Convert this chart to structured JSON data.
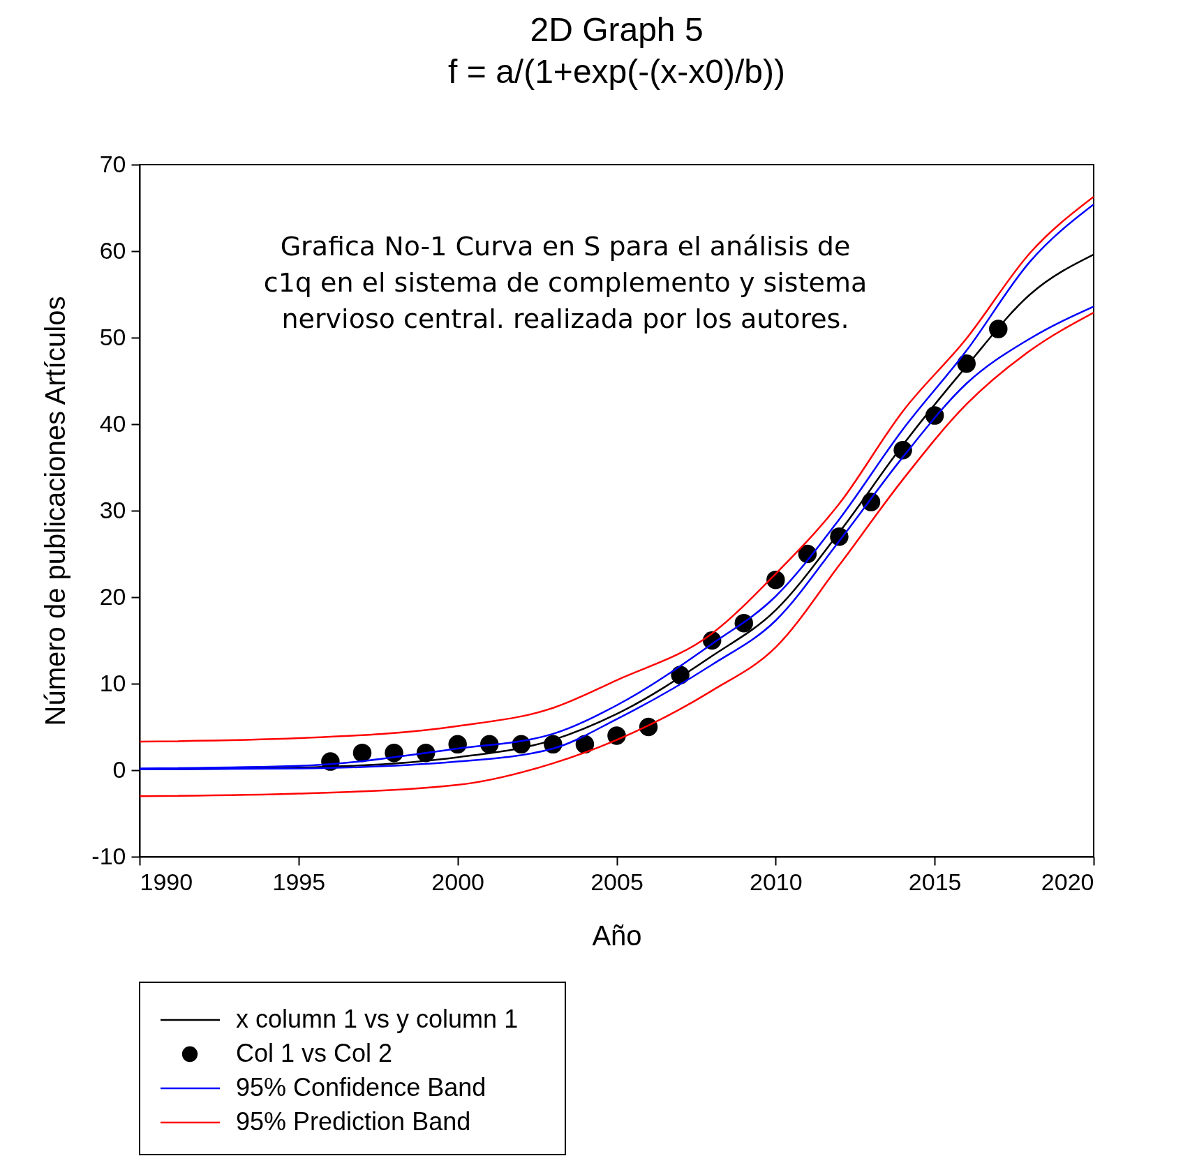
{
  "chart_data": {
    "type": "line",
    "title": "2D Graph 5",
    "subtitle": "f = a/(1+exp(-(x-x0)/b))",
    "xlabel": "Año",
    "ylabel": "Número de publicaciones Artículos",
    "annotations": [
      "Grafica No-1 Curva en S para el análisis de\nc1q en el sistema de complemento y sistema\nnervioso central. realizada por los autores."
    ],
    "xlim": [
      1990,
      2020
    ],
    "xticks": [
      1990,
      1995,
      2000,
      2005,
      2010,
      2015,
      2020
    ],
    "ylim": [
      -10,
      70
    ],
    "yticks": [
      -10,
      0,
      10,
      20,
      30,
      40,
      50,
      60,
      70
    ],
    "grid": false,
    "legend": "bottom left",
    "line_style": "solid",
    "series": [
      {
        "name": "x column 1 vs y column 1",
        "color": "#000000",
        "x": [
          1990,
          1995,
          2000,
          2003,
          2005,
          2008,
          2010,
          2012,
          2014,
          2016,
          2018,
          2020
        ],
        "values": [
          0.1,
          0.3,
          1.5,
          3.5,
          6.5,
          13.2,
          18.5,
          27.5,
          37.6,
          46.7,
          55.0,
          59.6
        ]
      },
      {
        "name": "Col 1 vs Col 2",
        "type": "scatter",
        "marker": "circle",
        "color": "#000000",
        "x": [
          1996,
          1997,
          1998,
          1999,
          2000,
          2001,
          2002,
          2003,
          2004,
          2005,
          2006,
          2007,
          2008,
          2009,
          2010,
          2011,
          2012,
          2013,
          2014,
          2015,
          2016,
          2017
        ],
        "values": [
          1,
          2,
          2,
          2,
          3,
          3,
          3,
          3,
          3,
          4,
          5,
          11,
          15,
          17,
          22,
          25,
          27,
          31,
          37,
          41,
          47,
          51
        ]
      },
      {
        "name": "95% Confidence Band",
        "color": "#0000ff",
        "x": [
          1990,
          1995,
          2000,
          2003,
          2005,
          2008,
          2010,
          2012,
          2014,
          2016,
          2018,
          2020
        ],
        "values": [
          0.2,
          0.5,
          2.5,
          4.2,
          7.5,
          14.6,
          20.1,
          29.0,
          39.4,
          48.5,
          58.8,
          65.4
        ]
      },
      {
        "color": "#0000ff",
        "x": [
          1990,
          1995,
          2000,
          2003,
          2005,
          2008,
          2010,
          2012,
          2014,
          2016,
          2018,
          2020
        ],
        "values": [
          0.1,
          0.2,
          1.0,
          2.5,
          5.9,
          12.2,
          17.3,
          26.5,
          36.2,
          44.7,
          49.9,
          53.6
        ]
      },
      {
        "name": "95% Prediction Band",
        "color": "#ff0000",
        "x": [
          1990,
          1995,
          2000,
          2003,
          2005,
          2008,
          2010,
          2012,
          2014,
          2016,
          2018,
          2020
        ],
        "values": [
          3.3,
          3.7,
          5.1,
          7.2,
          10.4,
          15.8,
          22.7,
          30.8,
          41.5,
          49.9,
          59.8,
          66.3
        ]
      },
      {
        "color": "#ff0000",
        "x": [
          1990,
          1995,
          2000,
          2003,
          2005,
          2008,
          2010,
          2012,
          2014,
          2016,
          2018,
          2020
        ],
        "values": [
          -3.0,
          -2.7,
          -1.7,
          0.8,
          3.5,
          9.2,
          14.2,
          23.7,
          33.6,
          42.3,
          48.5,
          52.9
        ]
      }
    ]
  }
}
